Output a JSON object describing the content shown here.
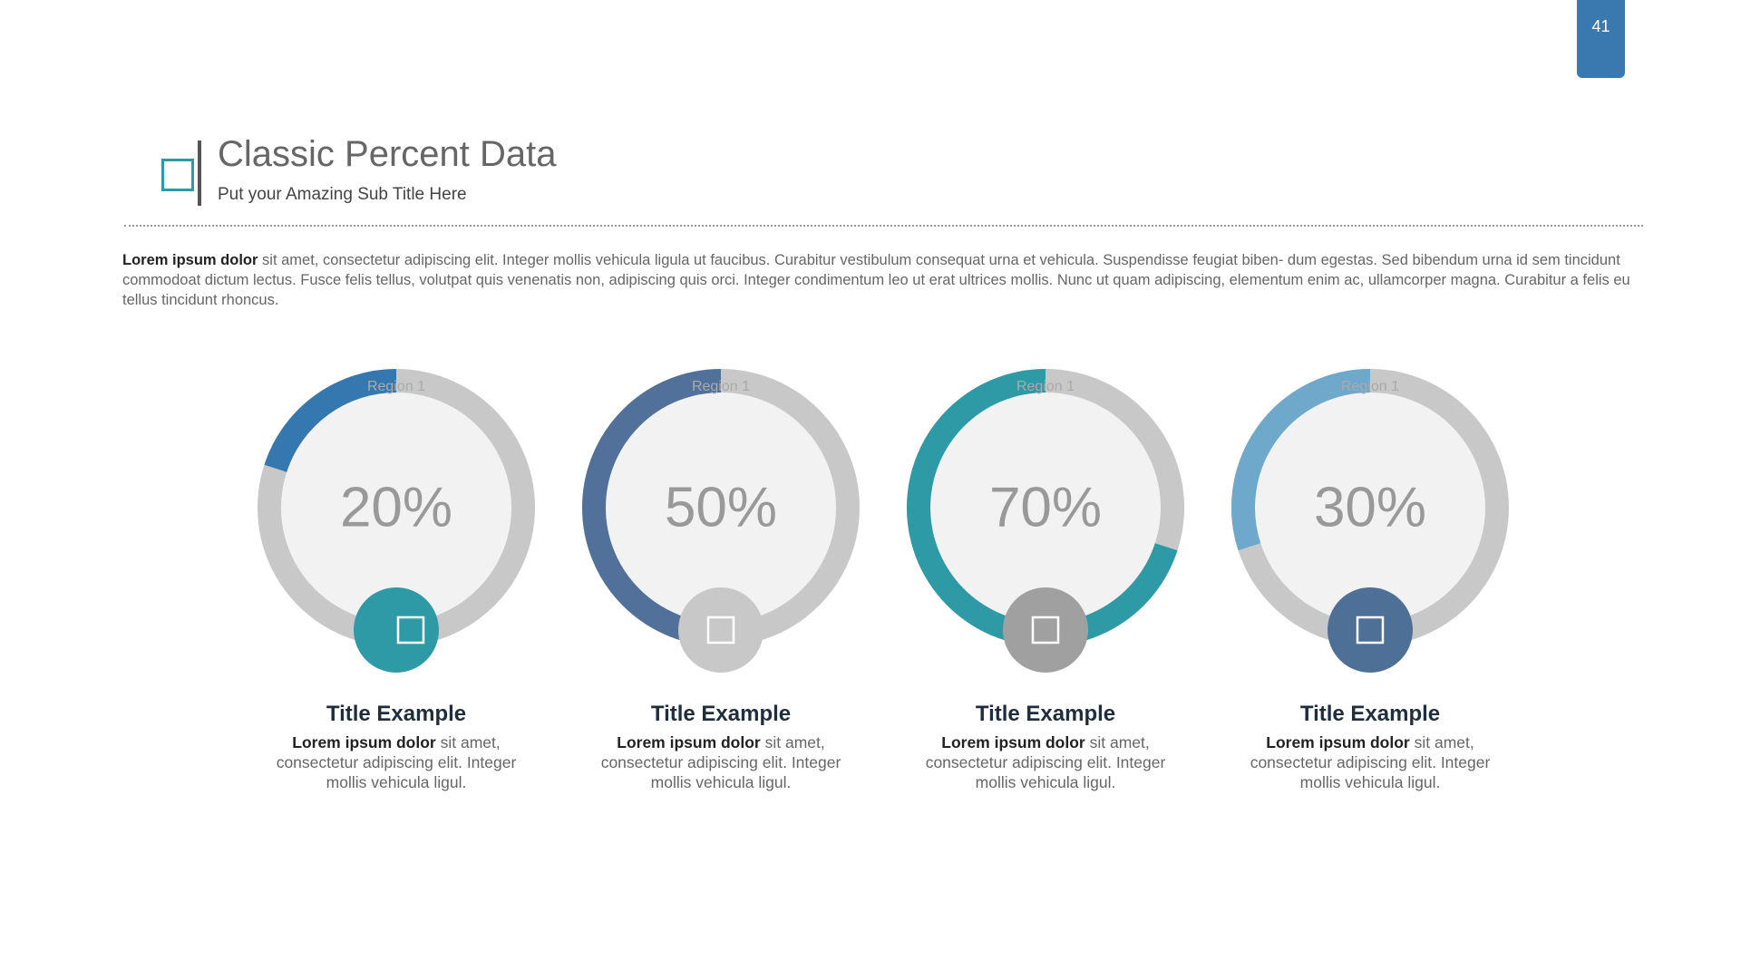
{
  "page_number": "41",
  "header": {
    "title": "Classic Percent Data",
    "subtitle": "Put your Amazing Sub Title Here"
  },
  "intro": {
    "lead": "Lorem ipsum dolor",
    "text": " sit amet, consectetur adipiscing elit. Integer mollis vehicula ligula ut faucibus. Curabitur vestibulum consequat urna et vehicula. Suspendisse feugiat biben- dum egestas. Sed bibendum urna id sem tincidunt commodoat dictum lectus. Fusce felis tellus, volutpat quis venenatis non, adipiscing quis orci. Integer condimentum leo ut erat ultrices mollis. Nunc ut quam adipiscing, elementum enim ac, ullamcorper magna. Curabitur a felis eu tellus tincidunt rhoncus."
  },
  "chart_data": [
    {
      "type": "donut",
      "categories": [
        "Region 1"
      ],
      "values": [
        20
      ],
      "value_labels": [
        "20%"
      ],
      "color": "#3578b0",
      "badge_color": "#2e9aa6"
    },
    {
      "type": "donut",
      "categories": [
        "Region 1"
      ],
      "values": [
        50
      ],
      "value_labels": [
        "50%"
      ],
      "color": "#52719a",
      "badge_color": "#c8c8c8"
    },
    {
      "type": "donut",
      "categories": [
        "Region 1"
      ],
      "values": [
        70
      ],
      "value_labels": [
        "70%"
      ],
      "color": "#2e9aa6",
      "badge_color": "#a0a0a0"
    },
    {
      "type": "donut",
      "categories": [
        "Region 1"
      ],
      "values": [
        30
      ],
      "value_labels": [
        "30%"
      ],
      "color": "#6ea9cc",
      "badge_color": "#4e6f96"
    }
  ],
  "cards": [
    {
      "title": "Title Example",
      "lead": "Lorem ipsum dolor",
      "text": " sit amet, consectetur adipiscing elit. Integer mollis vehicula ligul."
    },
    {
      "title": "Title Example",
      "lead": "Lorem ipsum dolor",
      "text": " sit amet, consectetur adipiscing elit. Integer mollis vehicula ligul."
    },
    {
      "title": "Title Example",
      "lead": "Lorem ipsum dolor",
      "text": " sit amet, consectetur adipiscing elit. Integer mollis vehicula ligul."
    },
    {
      "title": "Title Example",
      "lead": "Lorem ipsum dolor",
      "text": " sit amet, consectetur adipiscing elit. Integer mollis vehicula ligul."
    }
  ]
}
